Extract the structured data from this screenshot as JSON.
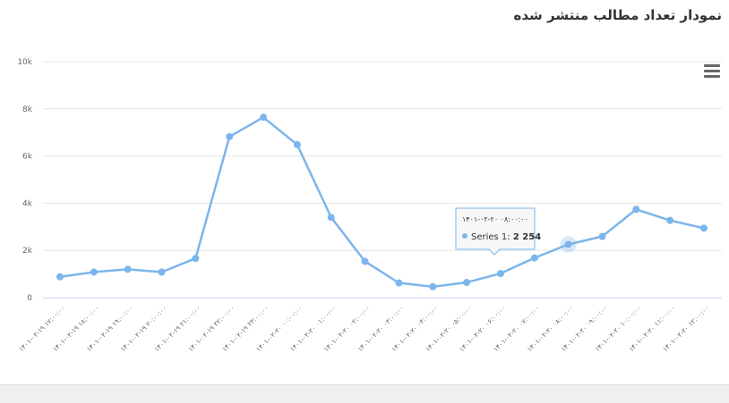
{
  "title": "نمودار تعداد مطالب منتشر شده",
  "menu_icon": "hamburger-menu-icon",
  "colors": {
    "line": "#7cb5ec",
    "grid": "#e6e6e6",
    "axis": "#ccd6eb"
  },
  "chart_data": {
    "type": "line",
    "y_ticks": [
      "0",
      "2k",
      "4k",
      "6k",
      "8k",
      "10k"
    ],
    "ylim": [
      0,
      10000
    ],
    "categories": [
      "۱۴۰۱-۰۲-۱۹ ۱۷:۰۰:۰۰",
      "۱۴۰۱-۰۲-۱۹ ۱۸:۰۰:۰۰",
      "۱۴۰۱-۰۲-۱۹ ۱۹:۰۰:۰۰",
      "۱۴۰۱-۰۲-۱۹ ۲۰:۰۰:۰۰",
      "۱۴۰۱-۰۲-۱۹ ۲۱:۰۰:۰۰",
      "۱۴۰۱-۰۲-۱۹ ۲۲:۰۰:۰۰",
      "۱۴۰۱-۰۲-۱۹ ۲۳:۰۰:۰۰",
      "۱۴۰۱-۰۲-۲۰ ۰۰:۰۰:۰۰",
      "۱۴۰۱-۰۲-۲۰ ۰۱:۰۰:۰۰",
      "۱۴۰۱-۰۲-۲۰ ۰۲:۰۰:۰۰",
      "۱۴۰۱-۰۲-۲۰ ۰۳:۰۰:۰۰",
      "۱۴۰۱-۰۲-۲۰ ۰۴:۰۰:۰۰",
      "۱۴۰۱-۰۲-۲۰ ۰۵:۰۰:۰۰",
      "۱۴۰۱-۰۲-۲۰ ۰۶:۰۰:۰۰",
      "۱۴۰۱-۰۲-۲۰ ۰۷:۰۰:۰۰",
      "۱۴۰۱-۰۲-۲۰ ۰۸:۰۰:۰۰",
      "۱۴۰۱-۰۲-۲۰ ۰۹:۰۰:۰۰",
      "۱۴۰۱-۰۲-۲۰ ۱۰:۰۰:۰۰",
      "۱۴۰۱-۰۲-۲۰ ۱۱:۰۰:۰۰",
      "۱۴۰۱-۰۲-۲۰ ۱۲:۰۰:۰۰"
    ],
    "series": [
      {
        "values": [
          880,
          1080,
          1200,
          1080,
          1660,
          6820,
          7640,
          6480,
          3400,
          1530,
          620,
          460,
          640,
          1020,
          1680,
          2254,
          2590,
          3740,
          3270,
          2940
        ]
      }
    ],
    "tooltip": {
      "header": "۱۴۰۱-۰۲-۲۰ ۰۸:۰۰:۰۰",
      "series_label": "Series 1:",
      "value": "2 254",
      "index": 15
    }
  }
}
